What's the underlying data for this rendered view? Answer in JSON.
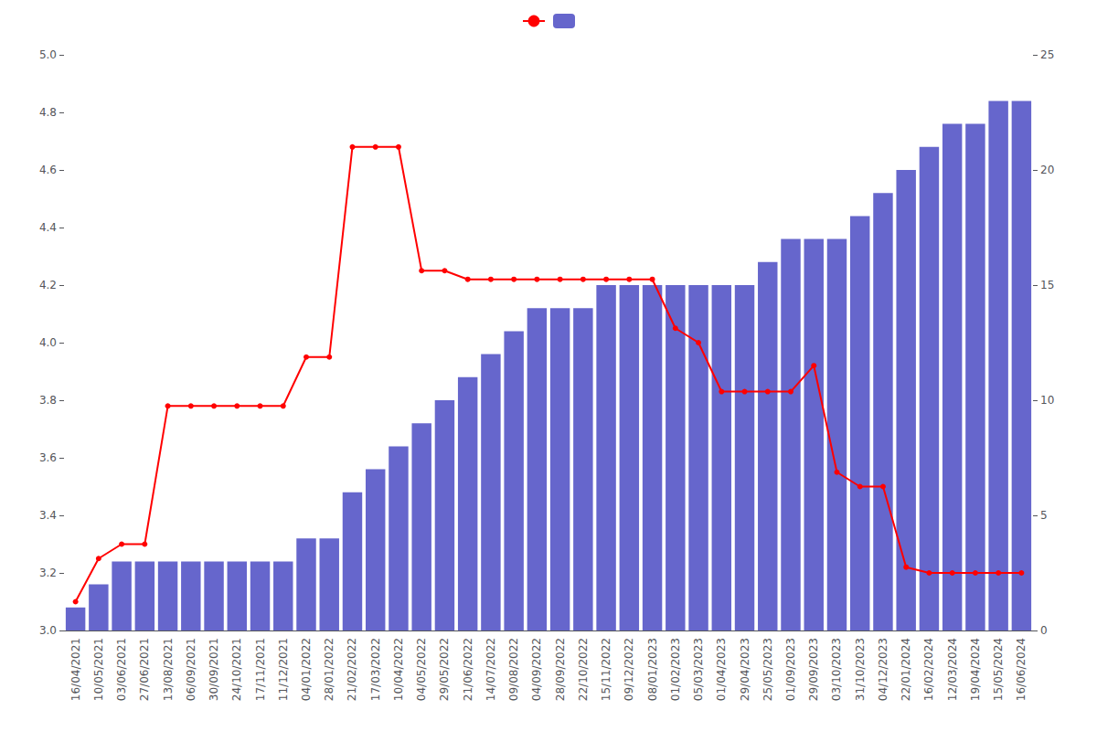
{
  "chart_data": {
    "type": "bar",
    "categories": [
      "16/04/2021",
      "10/05/2021",
      "03/06/2021",
      "27/06/2021",
      "13/08/2021",
      "06/09/2021",
      "30/09/2021",
      "24/10/2021",
      "17/11/2021",
      "11/12/2021",
      "04/01/2022",
      "28/01/2022",
      "21/02/2022",
      "17/03/2022",
      "10/04/2022",
      "04/05/2022",
      "29/05/2022",
      "21/06/2022",
      "14/07/2022",
      "09/08/2022",
      "04/09/2022",
      "28/09/2022",
      "22/10/2022",
      "15/11/2022",
      "09/12/2022",
      "08/01/2023",
      "01/02/2023",
      "05/03/2023",
      "01/04/2023",
      "29/04/2023",
      "25/05/2023",
      "01/09/2023",
      "29/09/2023",
      "03/10/2023",
      "31/10/2023",
      "04/12/2023",
      "22/01/2024",
      "16/02/2024",
      "12/03/2024",
      "19/04/2024",
      "15/05/2024",
      "16/06/2024"
    ],
    "series": [
      {
        "type": "line",
        "color": "#ff0000",
        "marker": "circle",
        "line_style": "solid",
        "values": [
          3.1,
          3.25,
          3.3,
          3.3,
          3.78,
          3.78,
          3.78,
          3.78,
          3.78,
          3.78,
          3.95,
          3.95,
          4.68,
          4.68,
          4.68,
          4.25,
          4.25,
          4.22,
          4.22,
          4.22,
          4.22,
          4.22,
          4.22,
          4.22,
          4.22,
          4.22,
          4.05,
          4.0,
          3.83,
          3.83,
          3.83,
          3.83,
          3.92,
          3.55,
          3.5,
          3.5,
          3.22,
          3.2,
          3.2,
          3.2,
          3.2,
          3.2
        ]
      },
      {
        "type": "bar",
        "color": "#6666cc",
        "axis": "y2",
        "values": [
          1,
          2,
          3,
          3,
          3,
          3,
          3,
          3,
          3,
          3,
          4,
          4,
          6,
          7,
          8,
          9,
          10,
          11,
          12,
          13,
          14,
          14,
          14,
          15,
          15,
          15,
          15,
          15,
          15,
          15,
          16,
          17,
          17,
          17,
          18,
          19,
          20,
          21,
          22,
          22,
          23,
          23
        ]
      }
    ],
    "ylim": [
      3.0,
      5.0
    ],
    "yticks": [
      {
        "value": 3.0,
        "label": "3.0"
      },
      3.2,
      3.4,
      3.6,
      3.8,
      {
        "value": 4.0,
        "label": "4.0"
      },
      4.2,
      4.4,
      4.6,
      4.8,
      {
        "value": 5.0,
        "label": "5.0"
      }
    ],
    "y2lim": [
      0,
      25
    ],
    "y2ticks": [
      0,
      5,
      10,
      15,
      20,
      25
    ],
    "grid": false,
    "legend": "top"
  }
}
